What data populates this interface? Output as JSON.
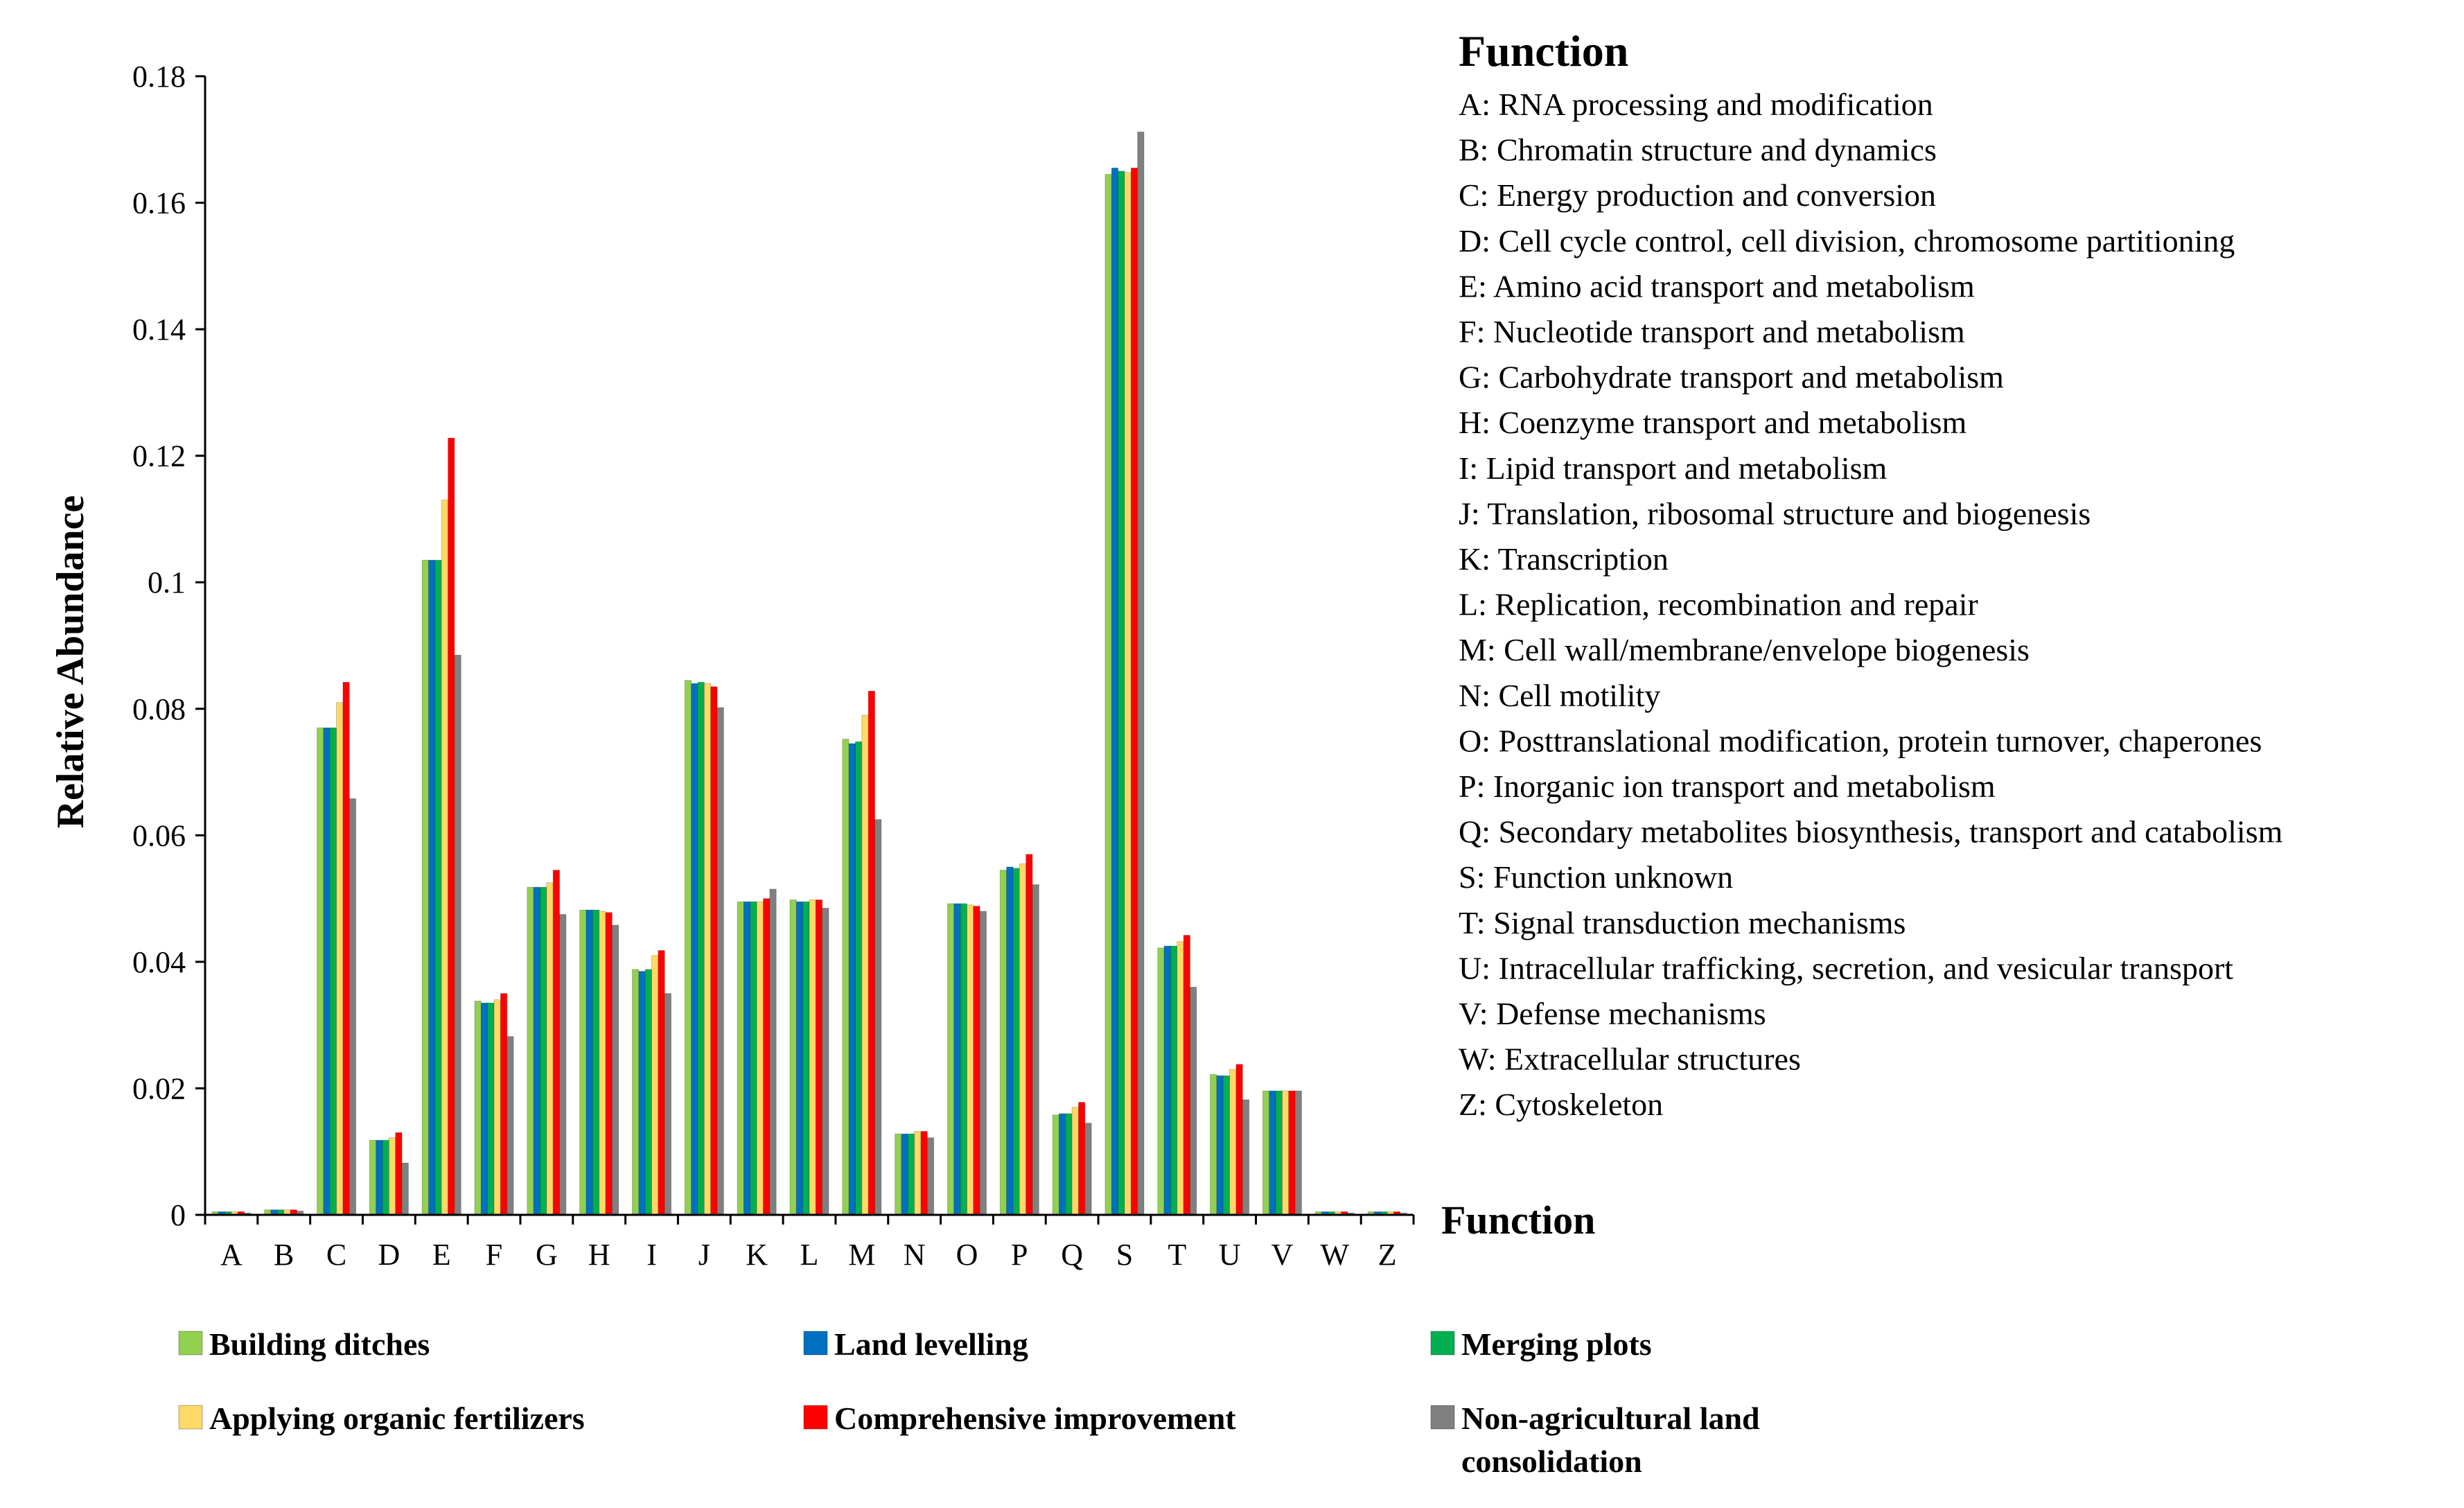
{
  "chart_data": {
    "type": "bar",
    "title": "",
    "xlabel": "Function",
    "ylabel": "Relative Abundance",
    "ylim": [
      0,
      0.18
    ],
    "yticks": [
      "0",
      "0.02",
      "0.04",
      "0.06",
      "0.08",
      "0.1",
      "0.12",
      "0.14",
      "0.16",
      "0.18"
    ],
    "categories": [
      "A",
      "B",
      "C",
      "D",
      "E",
      "F",
      "G",
      "H",
      "I",
      "J",
      "K",
      "L",
      "M",
      "N",
      "O",
      "P",
      "Q",
      "S",
      "T",
      "U",
      "V",
      "W",
      "Z"
    ],
    "series": [
      {
        "name": "Building ditches",
        "color": "#92D050",
        "values": [
          0.0005,
          0.0008,
          0.077,
          0.0118,
          0.1035,
          0.0338,
          0.0518,
          0.0482,
          0.0388,
          0.0845,
          0.0495,
          0.0498,
          0.0752,
          0.0128,
          0.0492,
          0.0545,
          0.0158,
          0.1645,
          0.0422,
          0.0222,
          0.0196,
          0.0005,
          0.0005
        ]
      },
      {
        "name": "Land levelling",
        "color": "#0070C0",
        "values": [
          0.0005,
          0.0008,
          0.077,
          0.0118,
          0.1035,
          0.0335,
          0.0518,
          0.0482,
          0.0385,
          0.084,
          0.0495,
          0.0495,
          0.0745,
          0.0128,
          0.0492,
          0.055,
          0.016,
          0.1655,
          0.0425,
          0.022,
          0.0196,
          0.0005,
          0.0005
        ]
      },
      {
        "name": "Merging plots",
        "color": "#00B050",
        "values": [
          0.0005,
          0.0008,
          0.077,
          0.0118,
          0.1035,
          0.0335,
          0.0518,
          0.0482,
          0.0388,
          0.0842,
          0.0495,
          0.0495,
          0.0748,
          0.0128,
          0.0492,
          0.0548,
          0.016,
          0.165,
          0.0425,
          0.022,
          0.0196,
          0.0005,
          0.0005
        ]
      },
      {
        "name": "Applying organic fertilizers",
        "color": "#FFD966",
        "values": [
          0.0005,
          0.0008,
          0.081,
          0.0122,
          0.113,
          0.034,
          0.0525,
          0.048,
          0.041,
          0.084,
          0.0495,
          0.0498,
          0.079,
          0.0132,
          0.049,
          0.0555,
          0.017,
          0.1648,
          0.0432,
          0.023,
          0.0196,
          0.0005,
          0.0005
        ]
      },
      {
        "name": "Comprehensive improvement",
        "color": "#FF0000",
        "values": [
          0.0005,
          0.0008,
          0.0842,
          0.013,
          0.1228,
          0.035,
          0.0545,
          0.0478,
          0.0418,
          0.0835,
          0.05,
          0.0498,
          0.0828,
          0.0132,
          0.0488,
          0.057,
          0.0178,
          0.1655,
          0.0442,
          0.0238,
          0.0196,
          0.0005,
          0.0005
        ]
      },
      {
        "name": "Non-agricultural land consolidation",
        "color": "#808080",
        "values": [
          0.0003,
          0.0006,
          0.0658,
          0.0082,
          0.0885,
          0.0282,
          0.0475,
          0.0458,
          0.035,
          0.0802,
          0.0515,
          0.0485,
          0.0625,
          0.0122,
          0.048,
          0.0522,
          0.0145,
          0.1712,
          0.036,
          0.0182,
          0.0196,
          0.0003,
          0.0003
        ]
      }
    ]
  },
  "legend": {
    "items": [
      {
        "label": "Building ditches",
        "color": "#92D050"
      },
      {
        "label": "Land levelling",
        "color": "#0070C0"
      },
      {
        "label": "Merging plots",
        "color": "#00B050"
      },
      {
        "label": "Applying organic fertilizers",
        "color": "#FFD966"
      },
      {
        "label": "Comprehensive improvement",
        "color": "#FF0000"
      },
      {
        "label": "Non-agricultural land",
        "label2": "consolidation",
        "color": "#808080"
      }
    ]
  },
  "function_key": {
    "title": "Function",
    "items": [
      "A: RNA processing and modification",
      "B: Chromatin structure and dynamics",
      "C: Energy production and conversion",
      "D: Cell cycle control, cell division, chromosome partitioning",
      "E: Amino acid transport and metabolism",
      "F: Nucleotide transport and metabolism",
      "G: Carbohydrate transport and metabolism",
      "H: Coenzyme transport and metabolism",
      "I: Lipid transport and metabolism",
      "J: Translation, ribosomal structure and biogenesis",
      "K: Transcription",
      "L: Replication, recombination and repair",
      "M: Cell wall/membrane/envelope biogenesis",
      "N: Cell motility",
      "O: Posttranslational modification, protein turnover, chaperones",
      "P: Inorganic ion transport and metabolism",
      "Q: Secondary metabolites biosynthesis, transport and catabolism",
      "S: Function unknown",
      "T: Signal transduction mechanisms",
      "U: Intracellular trafficking, secretion, and vesicular transport",
      "V: Defense mechanisms",
      "W: Extracellular structures",
      "Z: Cytoskeleton"
    ]
  }
}
